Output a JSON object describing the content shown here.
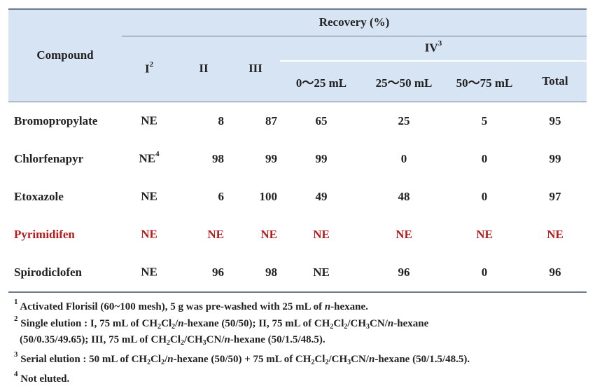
{
  "table": {
    "header": {
      "compound": "Compound",
      "recovery": "Recovery (%)",
      "col_I": "I",
      "col_I_sup": "2",
      "col_II": "II",
      "col_III": "III",
      "col_IV": "IV",
      "col_IV_sup": "3",
      "sub_0_25": "0～25 mL",
      "sub_25_50": "25～50 mL",
      "sub_50_75": "50～75 mL",
      "sub_total": "Total"
    },
    "rows": [
      {
        "name": "Bromopropylate",
        "I": "NE",
        "I_sup": "",
        "II": "8",
        "III": "87",
        "a": "65",
        "b": "25",
        "c": "5",
        "total": "95"
      },
      {
        "name": "Chlorfenapyr",
        "I": "NE",
        "I_sup": "4",
        "II": "98",
        "III": "99",
        "a": "99",
        "b": "0",
        "c": "0",
        "total": "99"
      },
      {
        "name": "Etoxazole",
        "I": "NE",
        "I_sup": "",
        "II": "6",
        "III": "100",
        "a": "49",
        "b": "48",
        "c": "0",
        "total": "97"
      },
      {
        "name": "Pyrimidifen",
        "I": "NE",
        "I_sup": "",
        "II": "NE",
        "III": "NE",
        "a": "NE",
        "b": "NE",
        "c": "NE",
        "total": "NE"
      },
      {
        "name": "Spirodiclofen",
        "I": "NE",
        "I_sup": "",
        "II": "96",
        "III": "98",
        "a": "NE",
        "b": "96",
        "c": "0",
        "total": "96"
      }
    ],
    "highlight_color": "#b81b1b",
    "header_bg": "#d7e4f3"
  },
  "notes": {
    "n1_mark": "1",
    "n1_a": " Activated Florisil (60~100 mesh), 5 g was pre-washed with 25 mL of ",
    "n1_b": "n",
    "n1_c": "-hexane.",
    "n2_mark": "2",
    "n2_a": " Single elution : I, 75 mL of CH",
    "n2_b": "2",
    "n2_c": "Cl",
    "n2_d": "2",
    "n2_e": "/",
    "n2_f": "n",
    "n2_g": "-hexane (50/50); II, 75 mL of CH",
    "n2_h": "2",
    "n2_i": "Cl",
    "n2_j": "2",
    "n2_k": "/CH",
    "n2_l": "3",
    "n2_m": "CN/",
    "n2_n": "n",
    "n2_o": "-hexane",
    "n2_line2": "(50/0.35/49.65);  III, 75 mL of CH",
    "n2_p": "2",
    "n2_q": "Cl",
    "n2_r": "2",
    "n2_s": "/CH",
    "n2_t": "3",
    "n2_u": "CN/",
    "n2_v": "n",
    "n2_w": "-hexane (50/1.5/48.5).",
    "n3_mark": "3",
    "n3_a": " Serial elution : 50 mL of CH",
    "n3_b": "2",
    "n3_c": "Cl",
    "n3_d": "2",
    "n3_e": "/",
    "n3_f": "n",
    "n3_g": "-hexane (50/50) + 75 mL of CH",
    "n3_h": "2",
    "n3_i": "Cl",
    "n3_j": "2",
    "n3_k": "/CH",
    "n3_l": "3",
    "n3_m": "CN/",
    "n3_n": "n",
    "n3_o": "-hexane (50/1.5/48.5).",
    "n4_mark": "4",
    "n4_a": " Not eluted."
  }
}
